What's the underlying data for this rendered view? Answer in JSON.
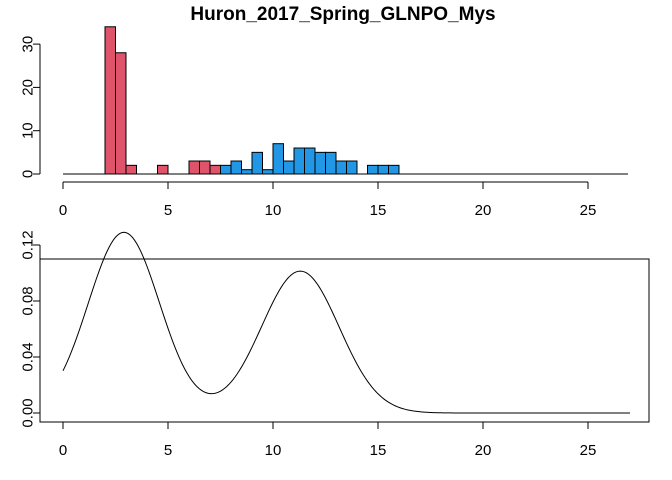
{
  "chart_data": [
    {
      "type": "bar",
      "subtype": "histogram",
      "title": "Huron_2017_Spring_GLNPO_Mys",
      "xlabel": "",
      "ylabel": "",
      "xlim": [
        0,
        27
      ],
      "ylim": [
        0,
        36
      ],
      "x_ticks": [
        0,
        5,
        10,
        15,
        20,
        25
      ],
      "y_ticks": [
        0,
        10,
        20,
        30
      ],
      "bin_width": 0.5,
      "colors": {
        "group1": "#DF536B",
        "group2": "#2297E6",
        "border": "#000000"
      },
      "series": [
        {
          "name": "group1",
          "bins": [
            {
              "x0": 2.0,
              "count": 34
            },
            {
              "x0": 2.5,
              "count": 28
            },
            {
              "x0": 3.0,
              "count": 2
            },
            {
              "x0": 4.5,
              "count": 2
            },
            {
              "x0": 6.0,
              "count": 3
            },
            {
              "x0": 6.5,
              "count": 3
            },
            {
              "x0": 7.0,
              "count": 2
            }
          ]
        },
        {
          "name": "group2",
          "bins": [
            {
              "x0": 7.5,
              "count": 2
            },
            {
              "x0": 8.0,
              "count": 3
            },
            {
              "x0": 8.5,
              "count": 1
            },
            {
              "x0": 9.0,
              "count": 5
            },
            {
              "x0": 9.5,
              "count": 1
            },
            {
              "x0": 10.0,
              "count": 7
            },
            {
              "x0": 10.5,
              "count": 3
            },
            {
              "x0": 11.0,
              "count": 6
            },
            {
              "x0": 11.5,
              "count": 6
            },
            {
              "x0": 12.0,
              "count": 5
            },
            {
              "x0": 12.5,
              "count": 5
            },
            {
              "x0": 13.0,
              "count": 3
            },
            {
              "x0": 13.5,
              "count": 3
            },
            {
              "x0": 14.5,
              "count": 2
            },
            {
              "x0": 15.0,
              "count": 2
            },
            {
              "x0": 15.5,
              "count": 2
            }
          ]
        }
      ]
    },
    {
      "type": "line",
      "title": "",
      "xlabel": "",
      "ylabel": "",
      "xlim": [
        0,
        27
      ],
      "ylim": [
        0,
        0.13
      ],
      "x_ticks": [
        0,
        5,
        10,
        15,
        20,
        25
      ],
      "y_ticks": [
        0.0,
        0.04,
        0.08,
        0.12
      ],
      "y_tick_labels": [
        "0.00",
        "0.04",
        "0.08",
        "0.12"
      ],
      "components": [
        {
          "weight": 0.55,
          "mean": 2.9,
          "sd": 1.7
        },
        {
          "weight": 0.47,
          "mean": 11.3,
          "sd": 1.85
        }
      ],
      "x_range": [
        0,
        27
      ]
    }
  ]
}
